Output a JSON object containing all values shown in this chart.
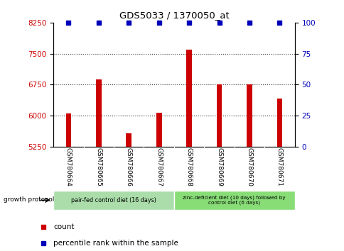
{
  "title": "GDS5033 / 1370050_at",
  "samples": [
    "GSM780664",
    "GSM780665",
    "GSM780666",
    "GSM780667",
    "GSM780668",
    "GSM780669",
    "GSM780670",
    "GSM780671"
  ],
  "counts": [
    6060,
    6870,
    5580,
    6080,
    7600,
    6760,
    6750,
    6410
  ],
  "percentiles": [
    100,
    100,
    100,
    100,
    100,
    100,
    100,
    100
  ],
  "ylim_left": [
    5250,
    8250
  ],
  "ylim_right": [
    0,
    100
  ],
  "yticks_left": [
    5250,
    6000,
    6750,
    7500,
    8250
  ],
  "yticks_right": [
    0,
    25,
    50,
    75,
    100
  ],
  "bar_color": "#cc0000",
  "dot_color": "#0000bb",
  "group1_label": "pair-fed control diet (16 days)",
  "group2_label": "zinc-deficient diet (10 days) followed by\ncontrol diet (6 days)",
  "group1_color": "#aaddaa",
  "group2_color": "#88dd77",
  "xlabel_label": "growth protocol",
  "legend_count_color": "#cc0000",
  "legend_pct_color": "#0000bb",
  "bg_color": "#ffffff",
  "dotted_line_color": "#333333",
  "tick_label_area_color": "#d0d0d0"
}
